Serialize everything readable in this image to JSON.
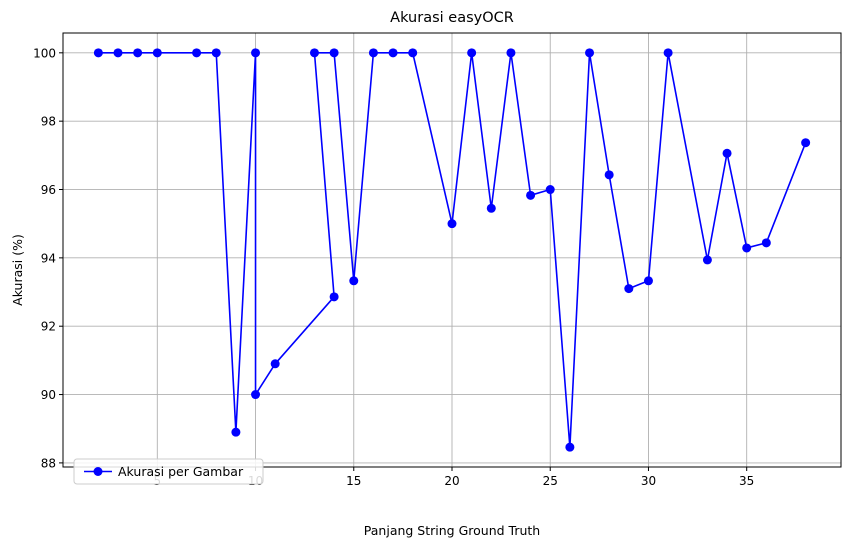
{
  "chart_data": {
    "type": "line",
    "title": "Akurasi easyOCR",
    "xlabel": "Panjang String Ground Truth",
    "ylabel": "Akurasi (%)",
    "xlim": [
      0.2,
      39.8
    ],
    "ylim": [
      87.88,
      100.58
    ],
    "x_ticks": [
      5,
      10,
      15,
      20,
      25,
      30,
      35
    ],
    "y_ticks": [
      88,
      90,
      92,
      94,
      96,
      98,
      100
    ],
    "grid": true,
    "legend_position": "lower left",
    "series": [
      {
        "name": "Akurasi per Gambar",
        "color": "#0000ff",
        "marker": "circle",
        "x": [
          2,
          3,
          4,
          5,
          7,
          8,
          9,
          10,
          10,
          11,
          14,
          13,
          14,
          15,
          16,
          17,
          18,
          20,
          21,
          22,
          23,
          24,
          25,
          26,
          27,
          28,
          29,
          30,
          31,
          33,
          34,
          35,
          36,
          38
        ],
        "y": [
          100,
          100,
          100,
          100,
          100,
          100,
          88.9,
          100,
          90.0,
          90.9,
          92.86,
          100,
          100,
          93.33,
          100,
          100,
          100,
          95.0,
          100,
          95.45,
          100,
          95.83,
          96.0,
          88.46,
          100,
          96.43,
          93.1,
          93.33,
          100,
          93.94,
          97.06,
          94.29,
          94.44,
          97.37
        ]
      }
    ]
  }
}
